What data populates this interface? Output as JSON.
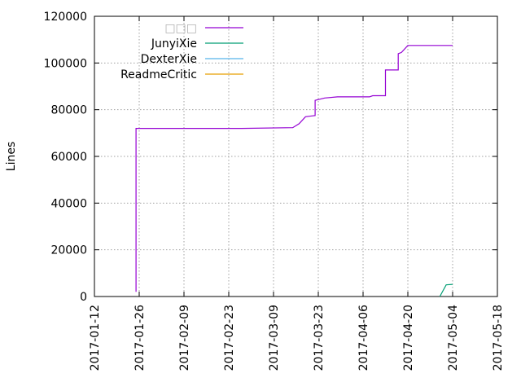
{
  "chart_data": {
    "type": "line",
    "title": "",
    "xlabel": "",
    "ylabel": "Lines",
    "x_type": "date",
    "xlim": [
      "2017-01-12",
      "2017-05-18"
    ],
    "ylim": [
      0,
      120000
    ],
    "xticks": [
      "2017-01-12",
      "2017-01-26",
      "2017-02-09",
      "2017-02-23",
      "2017-03-09",
      "2017-03-23",
      "2017-04-06",
      "2017-04-20",
      "2017-05-04",
      "2017-05-18"
    ],
    "yticks": [
      "0",
      "20000",
      "40000",
      "60000",
      "80000",
      "100000",
      "120000"
    ],
    "grid": true,
    "legend_position": "top-left",
    "series": [
      {
        "name": "□□□",
        "color": "#9400d3",
        "points": [
          [
            "2017-01-25",
            2000
          ],
          [
            "2017-01-25",
            72000
          ],
          [
            "2017-02-27",
            72000
          ],
          [
            "2017-03-15",
            72300
          ],
          [
            "2017-03-17",
            74000
          ],
          [
            "2017-03-19",
            77000
          ],
          [
            "2017-03-22",
            77500
          ],
          [
            "2017-03-22",
            84000
          ],
          [
            "2017-03-25",
            85000
          ],
          [
            "2017-03-29",
            85500
          ],
          [
            "2017-04-08",
            85500
          ],
          [
            "2017-04-09",
            86000
          ],
          [
            "2017-04-13",
            86000
          ],
          [
            "2017-04-13",
            97000
          ],
          [
            "2017-04-17",
            97000
          ],
          [
            "2017-04-17",
            104000
          ],
          [
            "2017-04-18",
            104500
          ],
          [
            "2017-04-20",
            107500
          ],
          [
            "2017-05-04",
            107500
          ]
        ]
      },
      {
        "name": "JunyiXie",
        "color": "#009e73",
        "points": [
          [
            "2017-04-30",
            0
          ],
          [
            "2017-05-02",
            5000
          ],
          [
            "2017-05-04",
            5200
          ]
        ]
      },
      {
        "name": "DexterXie",
        "color": "#56b4e9",
        "points": []
      },
      {
        "name": "ReadmeCritic",
        "color": "#e69f00",
        "points": []
      }
    ]
  }
}
